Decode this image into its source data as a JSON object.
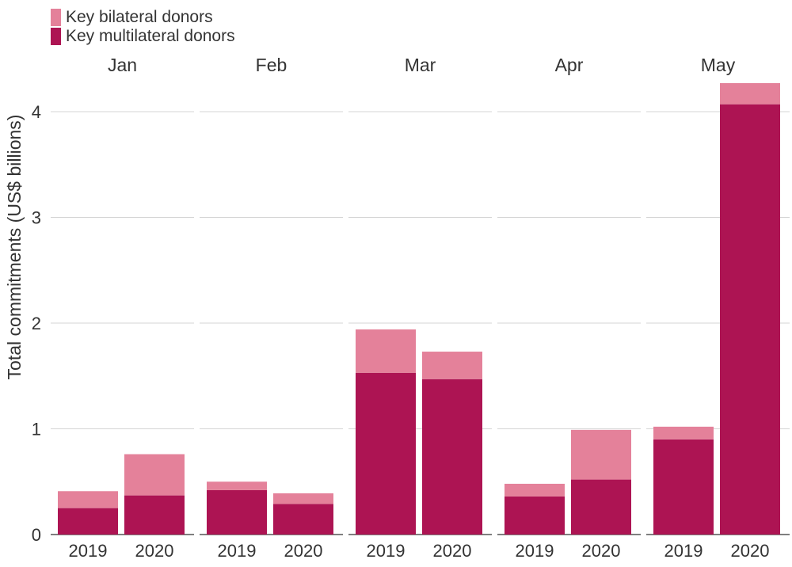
{
  "chart_data": {
    "type": "bar",
    "stacked": true,
    "ylabel": "Total commitments (US$ billions)",
    "xlabel": "",
    "ylim": [
      0,
      4.4
    ],
    "yticks": [
      0,
      1,
      2,
      3,
      4
    ],
    "grid": true,
    "legend_position": "top-left",
    "legend": [
      {
        "label": "Key bilateral donors",
        "color": "#e4819a"
      },
      {
        "label": "Key multilateral donors",
        "color": "#ad1453"
      }
    ],
    "panels": [
      {
        "month": "Jan",
        "categories": [
          "2019",
          "2020"
        ],
        "multilateral": [
          0.25,
          0.37
        ],
        "bilateral": [
          0.16,
          0.39
        ]
      },
      {
        "month": "Feb",
        "categories": [
          "2019",
          "2020"
        ],
        "multilateral": [
          0.42,
          0.29
        ],
        "bilateral": [
          0.08,
          0.1
        ]
      },
      {
        "month": "Mar",
        "categories": [
          "2019",
          "2020"
        ],
        "multilateral": [
          1.53,
          1.47
        ],
        "bilateral": [
          0.41,
          0.26
        ]
      },
      {
        "month": "Apr",
        "categories": [
          "2019",
          "2020"
        ],
        "multilateral": [
          0.36,
          0.52
        ],
        "bilateral": [
          0.12,
          0.47
        ]
      },
      {
        "month": "May",
        "categories": [
          "2019",
          "2020"
        ],
        "multilateral": [
          0.9,
          4.07
        ],
        "bilateral": [
          0.12,
          0.2
        ]
      }
    ]
  }
}
